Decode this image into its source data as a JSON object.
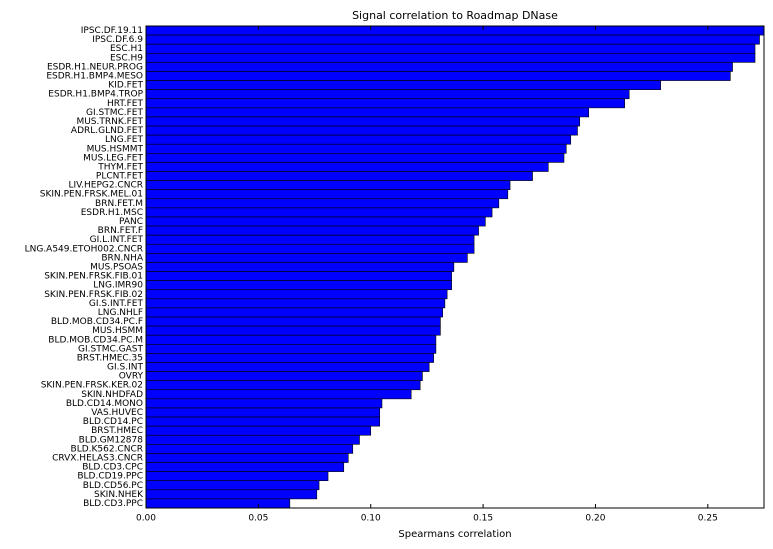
{
  "chart_data": {
    "type": "barh",
    "title": "Signal correlation to Roadmap DNase",
    "x_label": "Spearmans correlation",
    "color": "#0000ff",
    "categories": [
      "IPSC.DF.19.11",
      "IPSC.DF.6.9",
      "ESC.H1",
      "ESC.H9",
      "ESDR.H1.NEUR.PROG",
      "ESDR.H1.BMP4.MESO",
      "KID.FET",
      "ESDR.H1.BMP4.TROP",
      "HRT.FET",
      "GI.STMC.FET",
      "MUS.TRNK.FET",
      "ADRL.GLND.FET",
      "LNG.FET",
      "MUS.HSMMT",
      "MUS.LEG.FET",
      "THYM.FET",
      "PLCNT.FET",
      "LIV.HEPG2.CNCR",
      "SKIN.PEN.FRSK.MEL.01",
      "BRN.FET.M",
      "ESDR.H1.MSC",
      "PANC",
      "BRN.FET.F",
      "GI.L.INT.FET",
      "LNG.A549.ETOH002.CNCR",
      "BRN.NHA",
      "MUS.PSOAS",
      "SKIN.PEN.FRSK.FIB.01",
      "LNG.IMR90",
      "SKIN.PEN.FRSK.FIB.02",
      "GI.S.INT.FET",
      "LNG.NHLF",
      "BLD.MOB.CD34.PC.F",
      "MUS.HSMM",
      "BLD.MOB.CD34.PC.M",
      "GI.STMC.GAST",
      "BRST.HMEC.35",
      "GI.S.INT",
      "OVRY",
      "SKIN.PEN.FRSK.KER.02",
      "SKIN.NHDFAD",
      "BLD.CD14.MONO",
      "VAS.HUVEC",
      "BLD.CD14.PC",
      "BRST.HMEC",
      "BLD.GM12878",
      "BLD.K562.CNCR",
      "CRVX.HELAS3.CNCR",
      "BLD.CD3.CPC",
      "BLD.CD19.PPC",
      "BLD.CD56.PC",
      "SKIN.NHEK",
      "BLD.CD3.PPC"
    ],
    "values": [
      0.276,
      0.273,
      0.271,
      0.271,
      0.261,
      0.26,
      0.229,
      0.215,
      0.213,
      0.197,
      0.193,
      0.192,
      0.189,
      0.187,
      0.186,
      0.179,
      0.172,
      0.162,
      0.161,
      0.157,
      0.154,
      0.151,
      0.148,
      0.146,
      0.146,
      0.143,
      0.137,
      0.136,
      0.136,
      0.134,
      0.133,
      0.132,
      0.131,
      0.131,
      0.129,
      0.129,
      0.128,
      0.126,
      0.123,
      0.122,
      0.118,
      0.105,
      0.104,
      0.104,
      0.1,
      0.095,
      0.092,
      0.09,
      0.088,
      0.081,
      0.077,
      0.076,
      0.064
    ],
    "xlim": [
      0,
      0.275
    ],
    "xticks": [
      {
        "value": 0,
        "label": "0.00"
      },
      {
        "value": 0.05,
        "label": "0.05"
      },
      {
        "value": 0.1,
        "label": "0.10"
      },
      {
        "value": 0.15,
        "label": "0.15"
      },
      {
        "value": 0.2,
        "label": "0.20"
      },
      {
        "value": 0.25,
        "label": "0.25"
      }
    ]
  }
}
